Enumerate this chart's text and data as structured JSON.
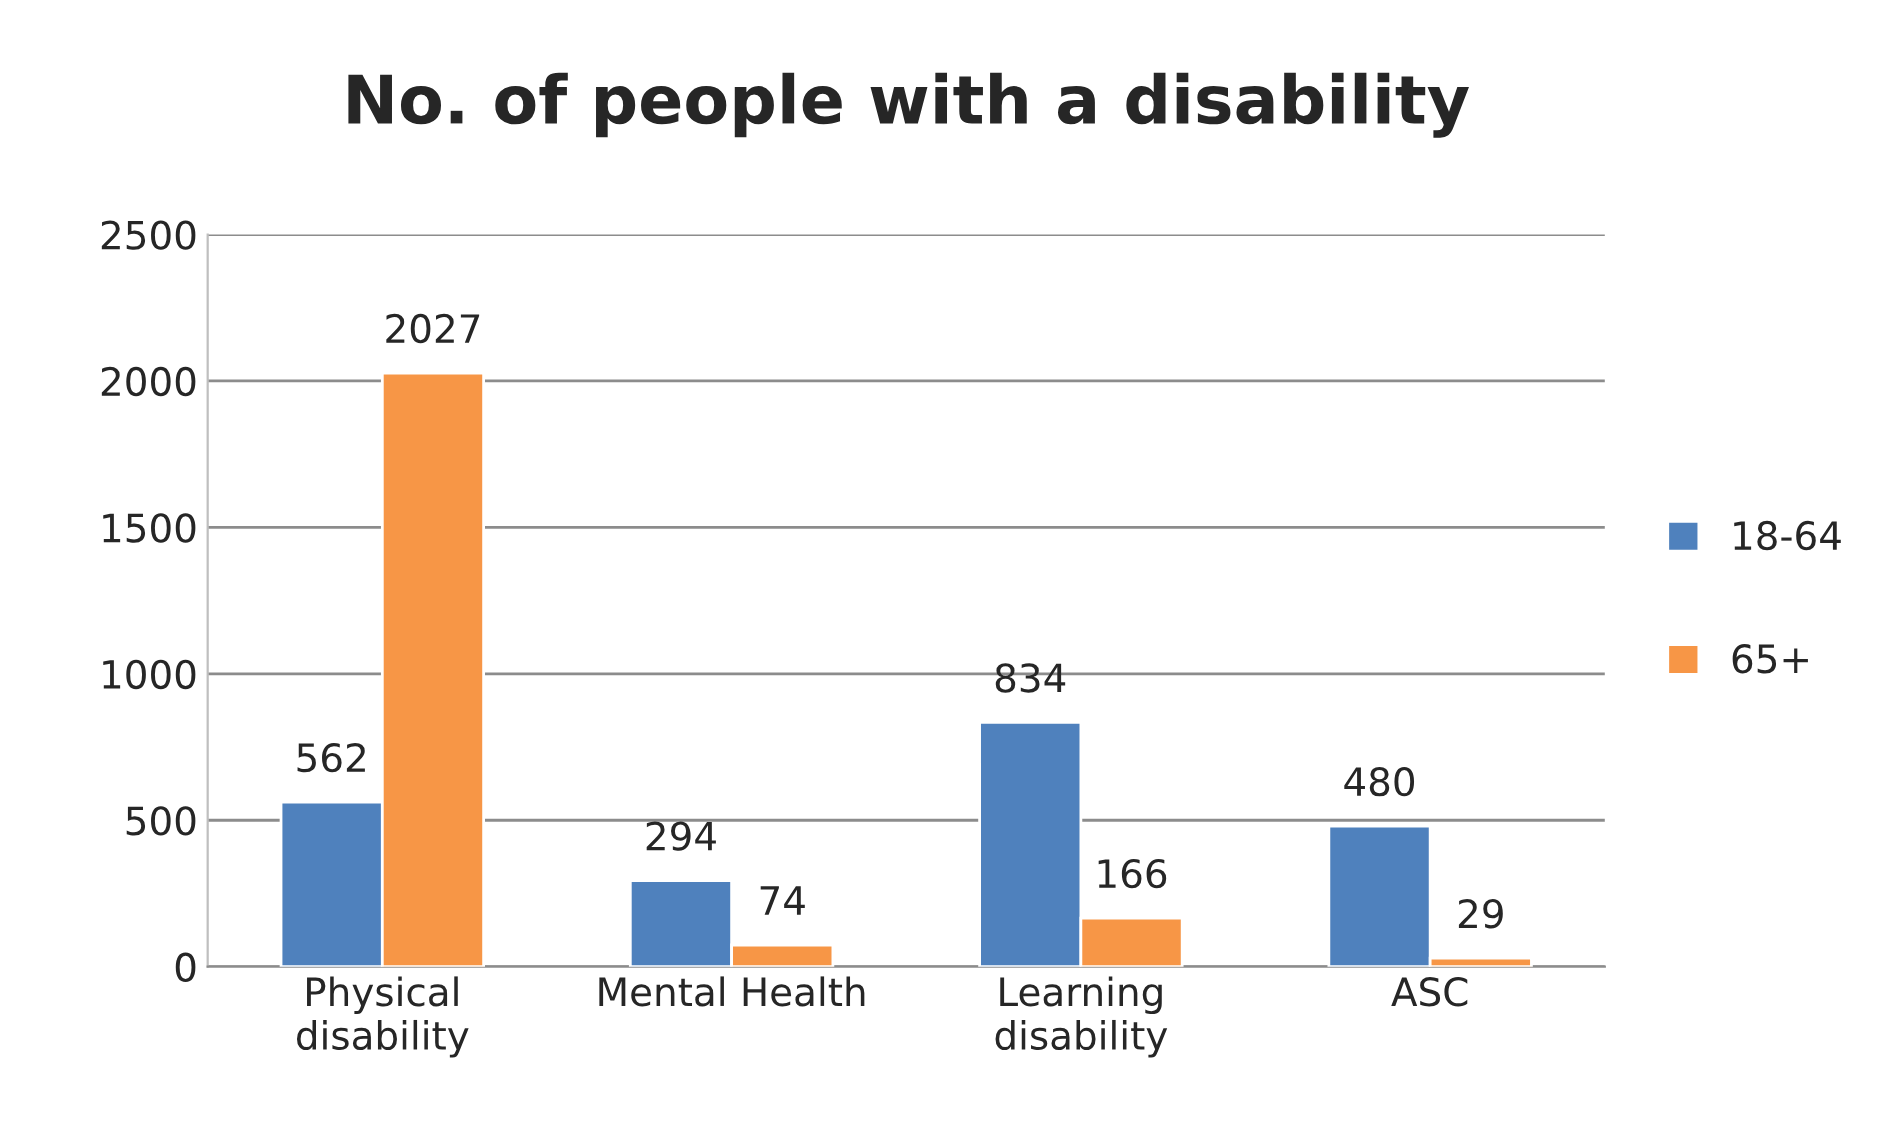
{
  "chart_data": {
    "type": "bar",
    "title": "No. of people with a disability",
    "categories": [
      "Physical\ndisability",
      "Mental Health",
      "Learning\ndisability",
      "ASC"
    ],
    "series": [
      {
        "name": "18-64",
        "color": "#4f81bd",
        "values": [
          562,
          294,
          834,
          480
        ]
      },
      {
        "name": "65+",
        "color": "#f79646",
        "values": [
          2027,
          74,
          166,
          29
        ]
      }
    ],
    "ylim": [
      0,
      2500
    ],
    "yticks": [
      0,
      500,
      1000,
      1500,
      2000,
      2500
    ],
    "grid": "y",
    "legend": "right",
    "data_labels": true
  }
}
